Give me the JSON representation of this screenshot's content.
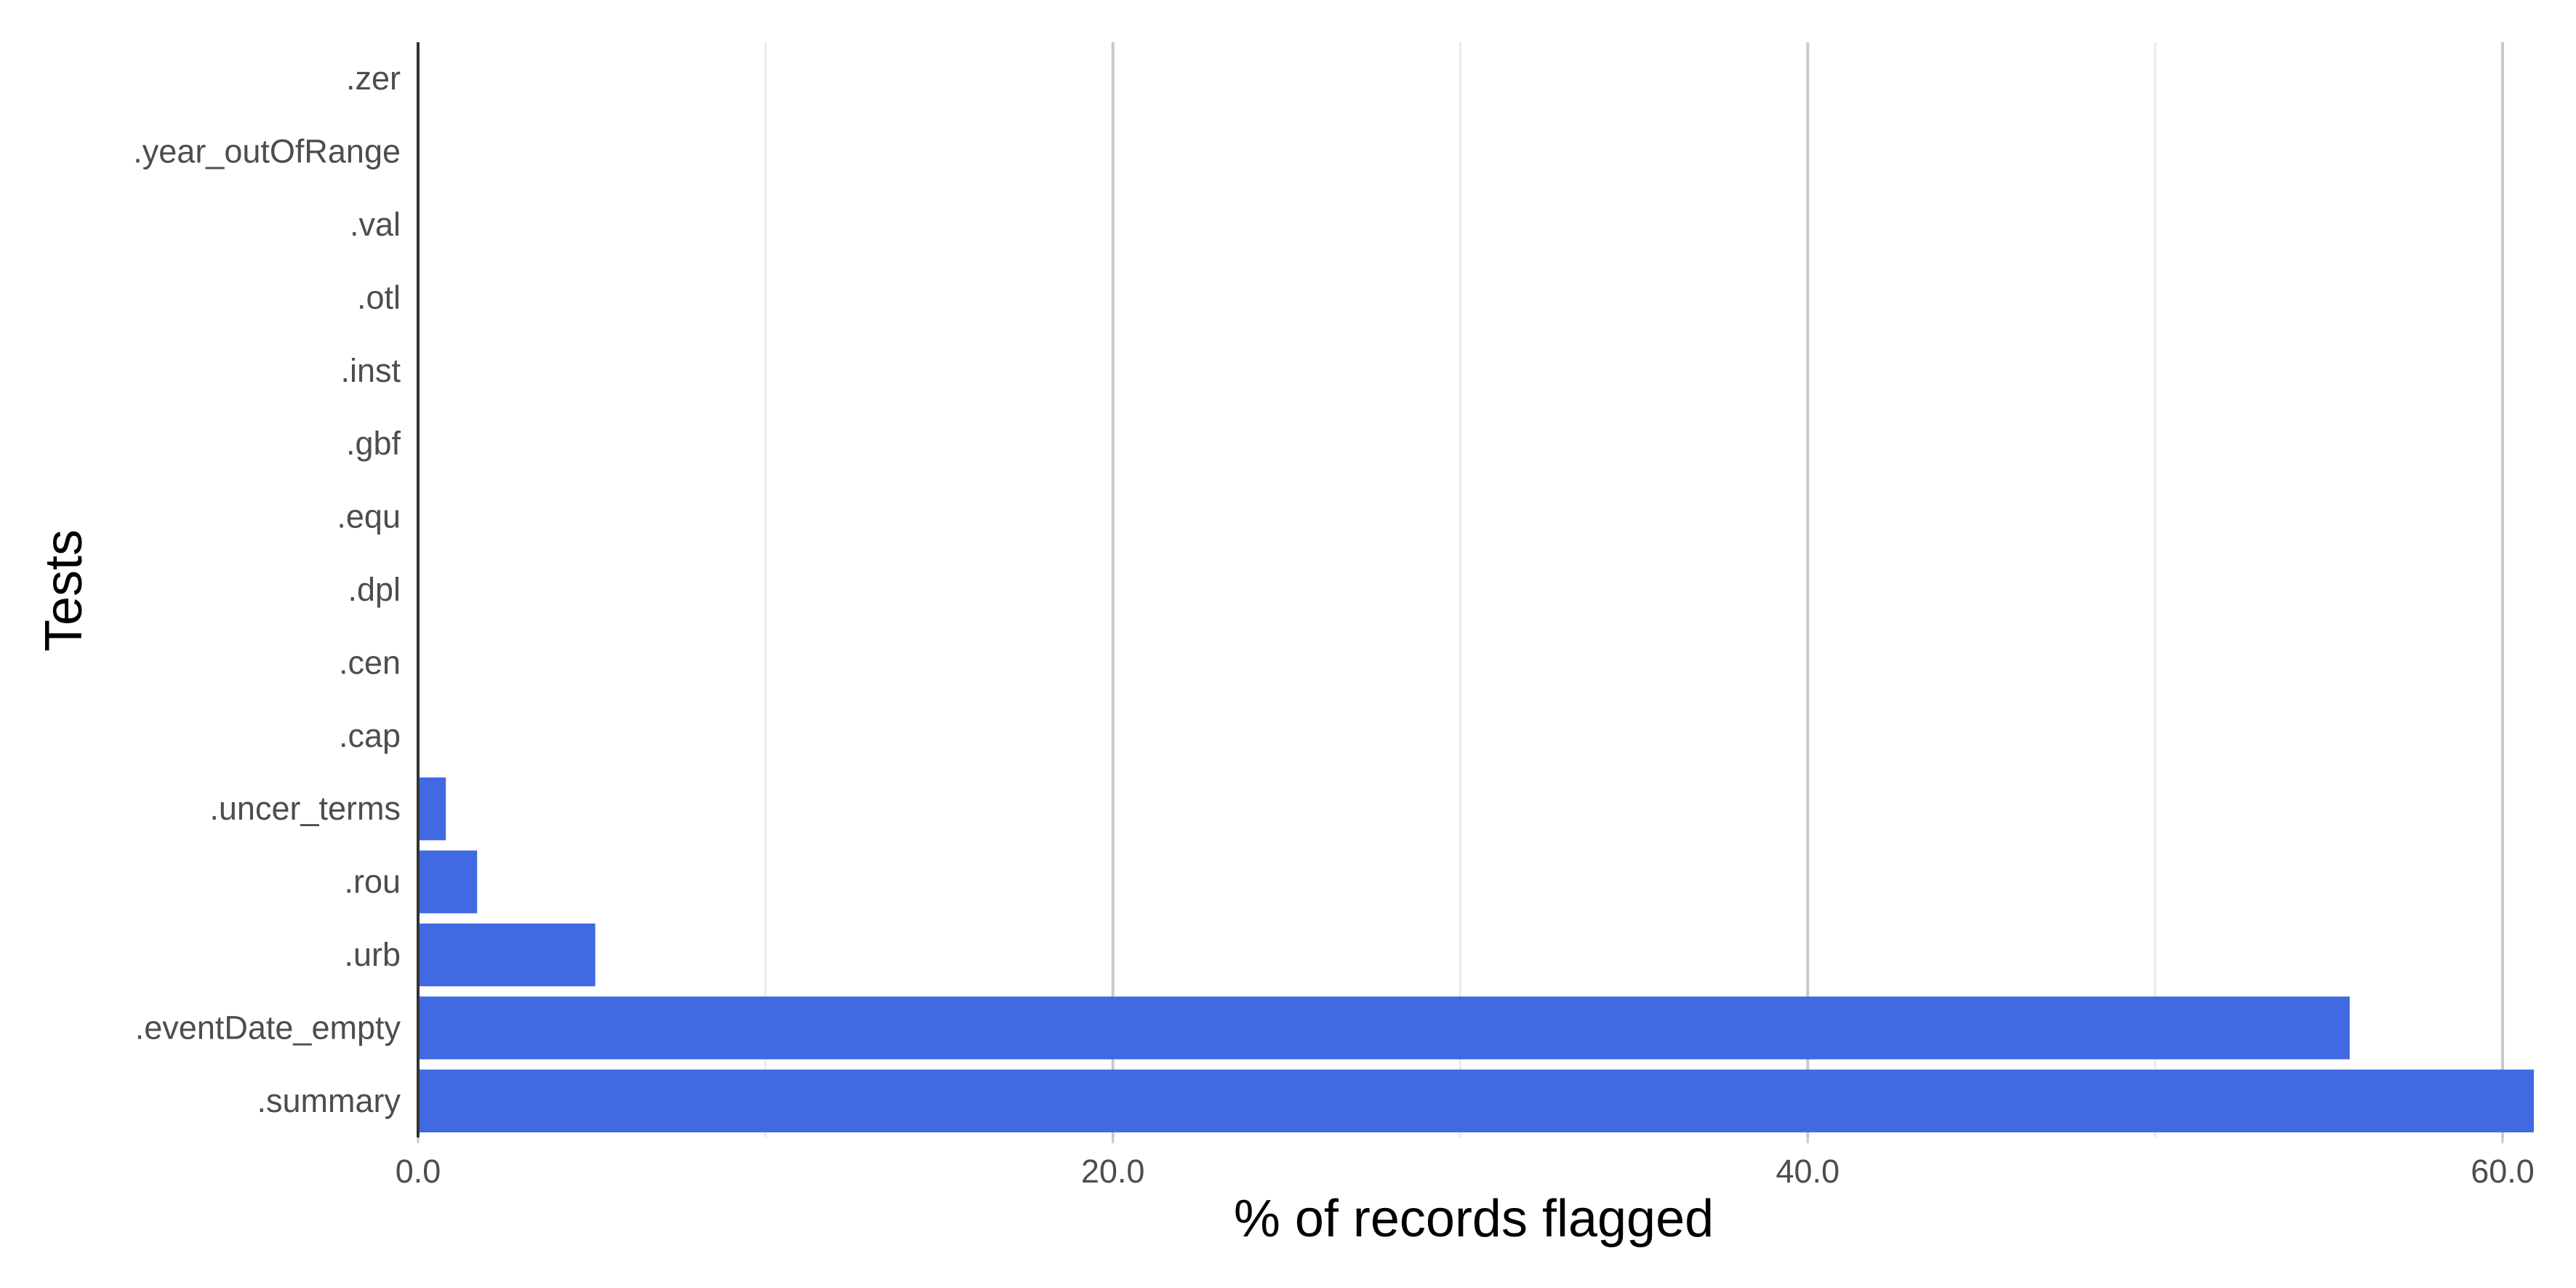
{
  "chart_data": {
    "type": "bar",
    "orientation": "horizontal",
    "title": "",
    "xlabel": "% of records flagged",
    "ylabel": "Tests",
    "categories": [
      ".zer",
      ".year_outOfRange",
      ".val",
      ".otl",
      ".inst",
      ".gbf",
      ".equ",
      ".dpl",
      ".cen",
      ".cap",
      ".uncer_terms",
      ".rou",
      ".urb",
      ".eventDate_empty",
      ".summary"
    ],
    "values": [
      0,
      0,
      0,
      0,
      0,
      0,
      0,
      0,
      0,
      0,
      0.8,
      1.7,
      5.1,
      55.6,
      60.9
    ],
    "xlim": [
      0,
      60.9
    ],
    "xticks": [
      0,
      20,
      40,
      60
    ],
    "xtick_labels": [
      "0.0",
      "20.0",
      "40.0",
      "60.0"
    ],
    "grid": "vertical",
    "legend": "none",
    "bar_color": "#4169E1"
  }
}
